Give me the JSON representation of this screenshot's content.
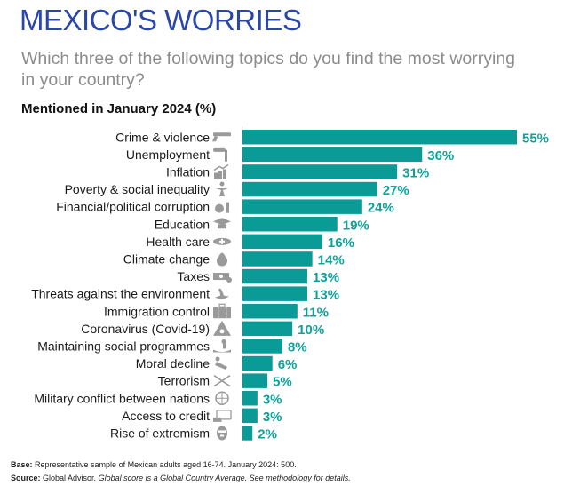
{
  "header": {
    "title": "MEXICO'S WORRIES",
    "subtitle": "Which three of the following topics do you find the most worrying in your country?"
  },
  "colors": {
    "title": "#2a46a8",
    "bar": "#0a9b96",
    "value_label": "#10a19a",
    "icon": "#9a9a9a",
    "axis": "#d0d0d0"
  },
  "chart_data": {
    "type": "bar",
    "orientation": "horizontal",
    "title": "Mentioned in January 2024 (%)",
    "xlabel": "",
    "ylabel": "",
    "xlim": [
      0,
      55
    ],
    "grid": false,
    "unit": "%",
    "categories": [
      "Crime & violence",
      "Unemployment",
      "Inflation",
      "Poverty & social inequality",
      "Financial/political corruption",
      "Education",
      "Health care",
      "Climate change",
      "Taxes",
      "Threats against the environment",
      "Immigration control",
      "Coronavirus (Covid-19)",
      "Maintaining social programmes",
      "Moral decline",
      "Terrorism",
      "Military conflict between nations",
      "Access to credit",
      "Rise of extremism"
    ],
    "values": [
      55,
      36,
      31,
      27,
      24,
      19,
      16,
      14,
      13,
      13,
      11,
      10,
      8,
      6,
      5,
      3,
      3,
      2
    ],
    "value_labels": [
      "55%",
      "36%",
      "31%",
      "27%",
      "24%",
      "19%",
      "16%",
      "14%",
      "13%",
      "13%",
      "11%",
      "10%",
      "8%",
      "6%",
      "5%",
      "3%",
      "3%",
      "2%"
    ],
    "icons": [
      "gun-icon",
      "pointing-finger-icon",
      "rising-chart-icon",
      "person-icon",
      "money-bag-icon",
      "graduation-cap-icon",
      "nurse-cap-icon",
      "globe-flame-icon",
      "banknote-icon",
      "swan-oil-icon",
      "suitcase-icon",
      "biohazard-warning-icon",
      "hand-giving-icon",
      "fallen-person-icon",
      "crossed-swords-icon",
      "globe-icon",
      "credit-card-hand-icon",
      "balaclava-icon"
    ]
  },
  "footnotes": {
    "base_label": "Base:",
    "base_text": " Representative sample of Mexican adults aged 16-74. January 2024: 500.",
    "source_label": "Source:",
    "source_text": " Global Advisor.",
    "source_note": " Global score is a Global Country Average. See methodology for details."
  }
}
